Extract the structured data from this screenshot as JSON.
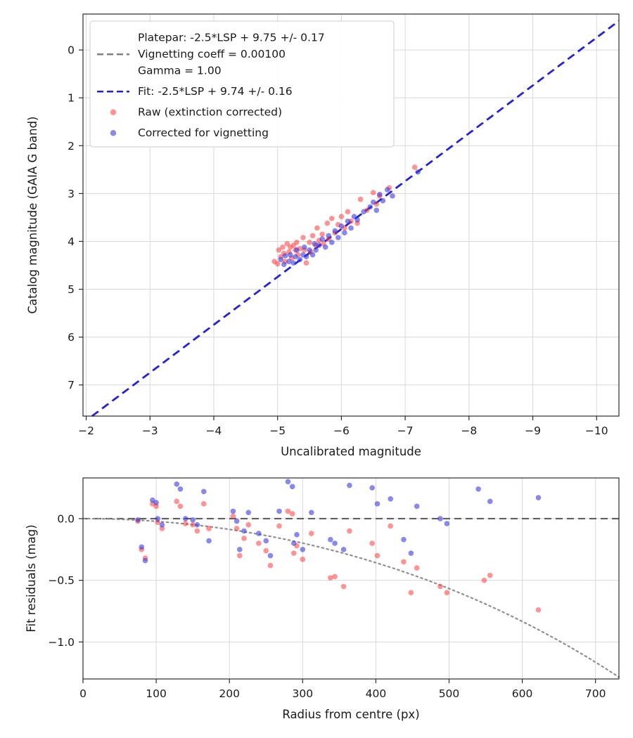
{
  "figure": {
    "background": "#ffffff"
  },
  "chart_data": [
    {
      "type": "scatter",
      "title": "",
      "xlabel": "Uncalibrated magnitude",
      "ylabel": "Catalog magnitude (GAIA G band)",
      "xlim": [
        -1.95,
        -10.35
      ],
      "ylim_top": -0.75,
      "ylim_bottom": 7.65,
      "grid": true,
      "x_ticks": {
        "values": [
          -2,
          -3,
          -4,
          -5,
          -6,
          -7,
          -8,
          -9,
          -10
        ],
        "labels": [
          "−2",
          "−3",
          "−4",
          "−5",
          "−6",
          "−7",
          "−8",
          "−9",
          "−10"
        ]
      },
      "y_ticks": {
        "values": [
          0,
          1,
          2,
          3,
          4,
          5,
          6,
          7
        ],
        "labels": [
          "0",
          "1",
          "2",
          "3",
          "4",
          "5",
          "6",
          "7"
        ]
      },
      "lines": [
        {
          "name": "platepar-line",
          "label": "Platepar: -2.5*LSP + 9.75 +/- 0.17",
          "slope": 1,
          "intercept": 9.75,
          "color": "#808080",
          "dash": "11,7",
          "width": 2.2
        },
        {
          "name": "fit-line",
          "label": "Fit: -2.5*LSP + 9.74 +/- 0.16",
          "slope": 1,
          "intercept": 9.74,
          "color": "#2222dd",
          "dash": "11,7",
          "width": 2.6
        }
      ],
      "series": [
        {
          "name": "raw",
          "label": "Raw (extinction corrected)",
          "color": "#ff3b3b",
          "alpha": 0.55,
          "marker_r": 3.8,
          "points": [
            [
              -4.95,
              4.42
            ],
            [
              -5.0,
              4.47
            ],
            [
              -5.02,
              4.18
            ],
            [
              -5.05,
              4.32
            ],
            [
              -5.08,
              4.12
            ],
            [
              -5.1,
              4.25
            ],
            [
              -5.12,
              4.42
            ],
            [
              -5.15,
              4.05
            ],
            [
              -5.18,
              4.22
            ],
            [
              -5.2,
              4.12
            ],
            [
              -5.22,
              4.35
            ],
            [
              -5.25,
              4.08
            ],
            [
              -5.28,
              4.18
            ],
            [
              -5.3,
              4.02
            ],
            [
              -5.32,
              4.28
            ],
            [
              -5.35,
              4.15
            ],
            [
              -5.4,
              3.92
            ],
            [
              -5.42,
              4.18
            ],
            [
              -5.45,
              4.45
            ],
            [
              -5.5,
              4.02
            ],
            [
              -5.52,
              4.22
            ],
            [
              -5.55,
              3.88
            ],
            [
              -5.6,
              4.08
            ],
            [
              -5.62,
              3.72
            ],
            [
              -5.65,
              3.98
            ],
            [
              -5.7,
              3.85
            ],
            [
              -5.72,
              4.05
            ],
            [
              -5.78,
              3.62
            ],
            [
              -5.8,
              3.95
            ],
            [
              -5.85,
              3.52
            ],
            [
              -5.9,
              3.82
            ],
            [
              -5.95,
              3.65
            ],
            [
              -6.0,
              3.48
            ],
            [
              -6.05,
              3.72
            ],
            [
              -6.1,
              3.38
            ],
            [
              -6.15,
              3.58
            ],
            [
              -6.25,
              3.62
            ],
            [
              -6.3,
              3.12
            ],
            [
              -6.4,
              3.35
            ],
            [
              -6.5,
              2.98
            ],
            [
              -6.55,
              3.22
            ],
            [
              -6.6,
              3.05
            ],
            [
              -6.75,
              2.88
            ],
            [
              -7.15,
              2.45
            ]
          ]
        },
        {
          "name": "corrected",
          "label": "Corrected for vignetting",
          "color": "#3b3be0",
          "alpha": 0.6,
          "marker_r": 3.8,
          "points": [
            [
              -5.05,
              4.38
            ],
            [
              -5.1,
              4.48
            ],
            [
              -5.12,
              4.3
            ],
            [
              -5.18,
              4.42
            ],
            [
              -5.2,
              4.28
            ],
            [
              -5.25,
              4.45
            ],
            [
              -5.28,
              4.32
            ],
            [
              -5.3,
              4.18
            ],
            [
              -5.35,
              4.38
            ],
            [
              -5.4,
              4.28
            ],
            [
              -5.42,
              4.12
            ],
            [
              -5.45,
              4.32
            ],
            [
              -5.5,
              4.18
            ],
            [
              -5.55,
              4.28
            ],
            [
              -5.58,
              4.05
            ],
            [
              -5.6,
              4.18
            ],
            [
              -5.65,
              4.08
            ],
            [
              -5.7,
              3.95
            ],
            [
              -5.75,
              4.12
            ],
            [
              -5.8,
              3.88
            ],
            [
              -5.85,
              4.02
            ],
            [
              -5.9,
              3.78
            ],
            [
              -5.95,
              3.92
            ],
            [
              -6.0,
              3.68
            ],
            [
              -6.05,
              3.82
            ],
            [
              -6.1,
              3.58
            ],
            [
              -6.15,
              3.72
            ],
            [
              -6.2,
              3.48
            ],
            [
              -6.25,
              3.55
            ],
            [
              -6.35,
              3.38
            ],
            [
              -6.45,
              3.28
            ],
            [
              -6.5,
              3.18
            ],
            [
              -6.55,
              3.35
            ],
            [
              -6.6,
              3.02
            ],
            [
              -6.65,
              3.15
            ],
            [
              -6.72,
              2.92
            ],
            [
              -6.8,
              3.05
            ],
            [
              -7.2,
              2.55
            ]
          ]
        }
      ],
      "legend": {
        "position": "upper left",
        "entries": [
          {
            "symbol": "dash",
            "color": "#808080",
            "lines": [
              "Platepar: -2.5*LSP + 9.75 +/- 0.17",
              "Vignetting coeff = 0.00100",
              "Gamma = 1.00"
            ]
          },
          {
            "symbol": "dash",
            "color": "#2222dd",
            "lines": [
              "Fit: -2.5*LSP + 9.74 +/- 0.16"
            ]
          },
          {
            "symbol": "dot",
            "color": "#ff3b3b",
            "alpha": 0.55,
            "lines": [
              "Raw (extinction corrected)"
            ]
          },
          {
            "symbol": "dot",
            "color": "#3b3be0",
            "alpha": 0.6,
            "lines": [
              "Corrected for vignetting"
            ]
          }
        ]
      }
    },
    {
      "type": "scatter",
      "xlabel": "Radius from centre (px)",
      "ylabel": "Fit residuals (mag)",
      "xlim": [
        0,
        732
      ],
      "ylim_top": 0.33,
      "ylim_bottom": -1.3,
      "grid": true,
      "x_ticks": {
        "values": [
          0,
          100,
          200,
          300,
          400,
          500,
          600,
          700
        ],
        "labels": [
          "0",
          "100",
          "200",
          "300",
          "400",
          "500",
          "600",
          "700"
        ]
      },
      "y_ticks": {
        "values": [
          0.0,
          -0.5,
          -1.0
        ],
        "labels": [
          "0.0",
          "−0.5",
          "−1.0"
        ]
      },
      "zero_line": {
        "color": "#555555",
        "dash": "10,6",
        "width": 2
      },
      "vignetting_curve": {
        "coeff": 0.001,
        "color": "#8f8f8f",
        "dash": "2.5,4.5",
        "width": 2.2
      },
      "series": [
        {
          "name": "raw",
          "label": "Raw (extinction corrected)",
          "color": "#ff3b3b",
          "alpha": 0.55,
          "marker_r": 3.8,
          "points": [
            [
              75,
              -0.02
            ],
            [
              80,
              -0.25
            ],
            [
              85,
              -0.32
            ],
            [
              95,
              0.12
            ],
            [
              100,
              0.1
            ],
            [
              102,
              -0.03
            ],
            [
              108,
              -0.08
            ],
            [
              128,
              0.14
            ],
            [
              133,
              0.1
            ],
            [
              140,
              -0.04
            ],
            [
              150,
              -0.05
            ],
            [
              156,
              -0.1
            ],
            [
              165,
              0.12
            ],
            [
              172,
              -0.08
            ],
            [
              205,
              0.02
            ],
            [
              210,
              -0.08
            ],
            [
              214,
              -0.3
            ],
            [
              220,
              -0.16
            ],
            [
              226,
              -0.05
            ],
            [
              240,
              -0.2
            ],
            [
              250,
              -0.26
            ],
            [
              256,
              -0.38
            ],
            [
              268,
              -0.06
            ],
            [
              280,
              0.06
            ],
            [
              286,
              0.04
            ],
            [
              288,
              -0.28
            ],
            [
              292,
              -0.22
            ],
            [
              300,
              -0.33
            ],
            [
              312,
              -0.12
            ],
            [
              338,
              -0.48
            ],
            [
              344,
              -0.47
            ],
            [
              356,
              -0.55
            ],
            [
              364,
              -0.1
            ],
            [
              395,
              -0.2
            ],
            [
              402,
              -0.3
            ],
            [
              420,
              -0.06
            ],
            [
              438,
              -0.35
            ],
            [
              448,
              -0.6
            ],
            [
              456,
              -0.4
            ],
            [
              488,
              -0.55
            ],
            [
              497,
              -0.6
            ],
            [
              548,
              -0.5
            ],
            [
              556,
              -0.46
            ],
            [
              622,
              -0.74
            ]
          ]
        },
        {
          "name": "corrected",
          "label": "Corrected for vignetting",
          "color": "#3b3be0",
          "alpha": 0.6,
          "marker_r": 3.8,
          "points": [
            [
              75,
              -0.01
            ],
            [
              80,
              -0.23
            ],
            [
              85,
              -0.34
            ],
            [
              95,
              0.15
            ],
            [
              100,
              0.13
            ],
            [
              102,
              0.0
            ],
            [
              108,
              -0.05
            ],
            [
              128,
              0.28
            ],
            [
              133,
              0.24
            ],
            [
              140,
              0.0
            ],
            [
              150,
              -0.01
            ],
            [
              156,
              -0.05
            ],
            [
              165,
              0.22
            ],
            [
              172,
              -0.18
            ],
            [
              205,
              0.06
            ],
            [
              210,
              -0.02
            ],
            [
              214,
              -0.25
            ],
            [
              220,
              -0.1
            ],
            [
              226,
              0.05
            ],
            [
              240,
              -0.12
            ],
            [
              250,
              -0.18
            ],
            [
              256,
              -0.3
            ],
            [
              268,
              0.06
            ],
            [
              280,
              0.3
            ],
            [
              286,
              0.26
            ],
            [
              288,
              -0.2
            ],
            [
              292,
              -0.13
            ],
            [
              300,
              -0.25
            ],
            [
              312,
              0.05
            ],
            [
              338,
              -0.17
            ],
            [
              344,
              -0.2
            ],
            [
              356,
              -0.25
            ],
            [
              364,
              0.27
            ],
            [
              395,
              0.25
            ],
            [
              402,
              0.12
            ],
            [
              420,
              0.16
            ],
            [
              438,
              -0.17
            ],
            [
              448,
              -0.28
            ],
            [
              456,
              0.1
            ],
            [
              488,
              0.0
            ],
            [
              497,
              -0.04
            ],
            [
              540,
              0.24
            ],
            [
              556,
              0.14
            ],
            [
              622,
              0.17
            ]
          ]
        }
      ]
    }
  ]
}
